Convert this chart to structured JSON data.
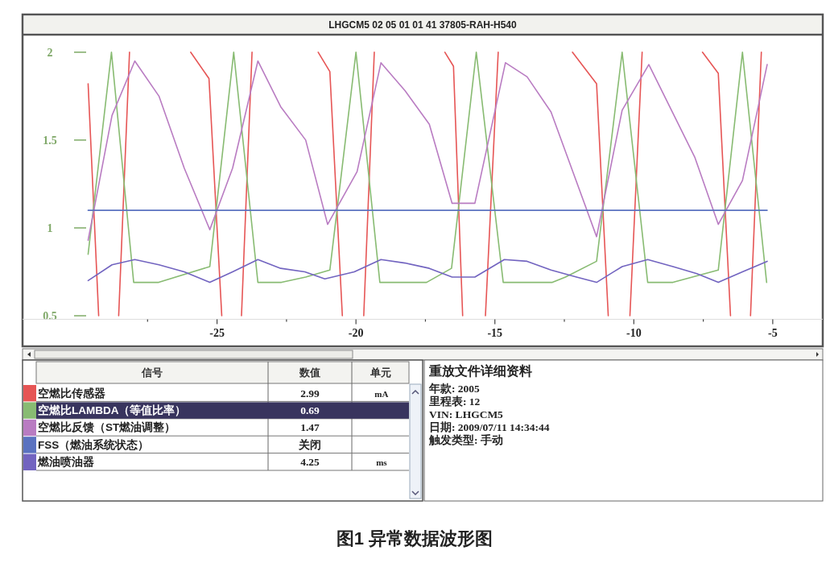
{
  "chart_data": [
    {
      "type": "line",
      "title": "图1 异常数据波形图",
      "subtitle": "LHGCM5 02 05 01 01 41 37805-RAH-H540",
      "xlim": [
        -32,
        -3.2
      ],
      "ylim": [
        0.48,
        2.1
      ],
      "xticks": [
        {
          "value": -27.5,
          "label": null
        },
        -25,
        {
          "value": -22.5,
          "label": null
        },
        -20,
        {
          "value": -17.5,
          "label": null
        },
        -15,
        {
          "value": -12.5,
          "label": null
        },
        -10,
        {
          "value": -7.5,
          "label": null
        },
        -5
      ],
      "yticks": [
        0.5,
        1,
        1.5,
        2
      ],
      "legend": "bottom",
      "legend_title": "信号",
      "annotations": [
        "数值",
        "单元",
        "2.99 mA",
        "0.69",
        "1.47",
        "关闭",
        "4.25 ms"
      ],
      "series": [
        {
          "name": "空燃比传感器",
          "color": "#e65555",
          "x": [
            -29.64,
            -29.26,
            -28.9,
            -28.54,
            -28.15,
            -27.05,
            -25.95,
            -25.29,
            -24.83,
            -24.48,
            -24.12,
            -23.74,
            -22.55,
            -21.36,
            -20.94,
            -20.49,
            -20.1,
            -19.72,
            -19.34,
            -18.07,
            -16.8,
            -16.49,
            -16.16,
            -15.75,
            -15.34,
            -14.88,
            -13.55,
            -12.21,
            -11.34,
            -10.92,
            -10.53,
            -10.14,
            -9.7,
            -8.62,
            -7.53,
            -6.96,
            -6.52,
            -6.16,
            -5.8,
            -5.41
          ],
          "values": [
            1.82,
            0.5,
            null,
            0.5,
            2,
            null,
            2,
            1.85,
            0.5,
            null,
            0.5,
            2,
            null,
            2,
            1.89,
            0.5,
            null,
            0.5,
            2,
            null,
            2,
            1.92,
            0.5,
            null,
            0.5,
            2,
            null,
            2,
            1.82,
            0.5,
            null,
            0.5,
            2,
            null,
            2,
            1.88,
            0.5,
            null,
            0.5,
            2
          ]
        },
        {
          "name": "空燃比LAMBDA（等值比率）",
          "color": "#88bb72",
          "x": [
            -29.64,
            -28.8,
            -28.0,
            -27.1,
            -25.26,
            -24.4,
            -23.53,
            -22.68,
            -21.81,
            -20.94,
            -20.0,
            -19.14,
            -17.46,
            -16.56,
            -15.67,
            -14.7,
            -12.93,
            -12.46,
            -11.34,
            -10.42,
            -9.5,
            -8.59,
            -6.96,
            -6.09,
            -5.22
          ],
          "values": [
            0.85,
            2,
            0.69,
            0.69,
            0.78,
            2,
            0.69,
            0.69,
            0.72,
            0.76,
            2,
            0.69,
            0.69,
            0.77,
            2,
            0.69,
            0.69,
            0.72,
            0.81,
            2,
            0.69,
            0.69,
            0.76,
            2,
            0.69
          ]
        },
        {
          "name": "空燃比反馈（ST燃油调整）",
          "color": "#b97cc2",
          "x": [
            -29.64,
            -28.78,
            -27.96,
            -27.09,
            -26.18,
            -25.26,
            -24.44,
            -23.53,
            -22.71,
            -21.81,
            -21.02,
            -19.96,
            -19.1,
            -18.23,
            -17.36,
            -16.54,
            -15.72,
            -14.62,
            -13.84,
            -12.98,
            -11.34,
            -10.42,
            -9.46,
            -7.8,
            -6.96,
            -6.09,
            -5.2
          ],
          "values": [
            0.93,
            1.64,
            1.95,
            1.75,
            1.34,
            0.99,
            1.34,
            1.95,
            1.69,
            1.5,
            1.02,
            1.32,
            1.94,
            1.78,
            1.59,
            1.14,
            1.14,
            1.94,
            1.86,
            1.66,
            0.95,
            1.67,
            1.93,
            1.4,
            1.02,
            1.27,
            1.93
          ]
        },
        {
          "name": "FSS（燃油系统状态）",
          "color": "#5a72c0",
          "x": [
            -29.64,
            -5.2
          ],
          "values": [
            1.1,
            1.1
          ]
        },
        {
          "name": "燃油喷油器",
          "color": "#7264c0",
          "x": [
            -29.64,
            -28.78,
            -27.96,
            -27.09,
            -26.18,
            -25.26,
            -24.44,
            -23.53,
            -22.71,
            -21.84,
            -21.12,
            -20.06,
            -19.1,
            -18.23,
            -17.36,
            -16.54,
            -15.72,
            -14.66,
            -13.84,
            -12.98,
            -12.06,
            -11.34,
            -10.42,
            -9.5,
            -8.59,
            -7.73,
            -6.96,
            -6.09,
            -5.2
          ],
          "values": [
            0.7,
            0.79,
            0.82,
            0.79,
            0.75,
            0.69,
            0.75,
            0.82,
            0.77,
            0.75,
            0.71,
            0.75,
            0.82,
            0.8,
            0.77,
            0.72,
            0.72,
            0.82,
            0.81,
            0.76,
            0.72,
            0.69,
            0.78,
            0.82,
            0.78,
            0.74,
            0.69,
            0.75,
            0.81
          ]
        }
      ]
    },
    {
      "type": "other",
      "title": "重放文件详细资料",
      "annotations": [
        "年款: 2005",
        "里程表: 12",
        "VIN: LHGCM5",
        "日期: 2009/07/11 14:34:44",
        "触发类型: 手动"
      ]
    }
  ]
}
